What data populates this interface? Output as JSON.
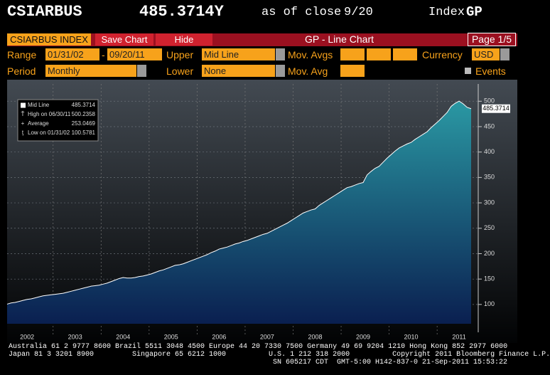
{
  "header": {
    "ticker": "CSIARBUS",
    "price": "485.3714Y",
    "as_of": "as of close",
    "date": "9/20",
    "index": "Index",
    "function": "GP"
  },
  "toolbar": {
    "security": "CSIARBUS INDEX",
    "save": "Save Chart",
    "hide": "Hide",
    "title": "GP - Line Chart",
    "page": "Page 1/5"
  },
  "controls": {
    "range_label": "Range",
    "start": "01/31/02",
    "dash": "-",
    "end": "09/20/11",
    "upper_label": "Upper",
    "upper": "Mid Line",
    "mov_avgs_label": "Mov. Avgs",
    "currency_label": "Currency",
    "currency": "USD",
    "period_label": "Period",
    "period": "Monthly",
    "lower_label": "Lower",
    "lower": "None",
    "mov_avg_label": "Mov. Avg",
    "events": "Events"
  },
  "footer": [
    "Australia 61 2 9777 8600 Brazil 5511 3048 4500 Europe 44 20 7330 7500 Germany 49 69 9204 1210 Hong Kong 852 2977 6000",
    "Japan 81 3 3201 8900         Singapore 65 6212 1000          U.S. 1 212 318 2000          Copyright 2011 Bloomberg Finance L.P.",
    "SN 605217 CDT  GMT-5:00 H142-837-0 21-Sep-2011 15:53:22"
  ],
  "chart_data": {
    "type": "area",
    "categories": [
      null,
      null,
      null,
      null,
      null,
      "2002",
      null,
      null,
      null,
      null,
      null,
      null,
      null,
      null,
      null,
      null,
      null,
      "2003",
      null,
      null,
      null,
      null,
      null,
      null,
      null,
      null,
      null,
      null,
      null,
      "2004",
      null,
      null,
      null,
      null,
      null,
      null,
      null,
      null,
      null,
      null,
      null,
      "2005",
      null,
      null,
      null,
      null,
      null,
      null,
      null,
      null,
      null,
      null,
      null,
      "2006",
      null,
      null,
      null,
      null,
      null,
      null,
      null,
      null,
      null,
      null,
      null,
      "2007",
      null,
      null,
      null,
      null,
      null,
      null,
      null,
      null,
      null,
      null,
      null,
      "2008",
      null,
      null,
      null,
      null,
      null,
      null,
      null,
      null,
      null,
      null,
      null,
      "2009",
      null,
      null,
      null,
      null,
      null,
      null,
      null,
      null,
      null,
      null,
      null,
      "2010",
      null,
      null,
      null,
      null,
      null,
      null,
      null,
      null,
      null,
      null,
      null,
      "2011",
      null,
      null,
      null
    ],
    "series": [
      {
        "name": "Mid Line",
        "color": "#1f8596",
        "values": [
          100.5781,
          103,
          104,
          106,
          108,
          110,
          111,
          113,
          115,
          117,
          118,
          119,
          120,
          121,
          122,
          124,
          126,
          128,
          130,
          132,
          134,
          136,
          137,
          138,
          140,
          142,
          145,
          148,
          151,
          153,
          152,
          152,
          153,
          155,
          156,
          158,
          160,
          163,
          166,
          168,
          171,
          174,
          177,
          178,
          180,
          183,
          186,
          189,
          192,
          195,
          198,
          202,
          205,
          209,
          211,
          213,
          216,
          219,
          221,
          224,
          226,
          229,
          232,
          235,
          238,
          240,
          244,
          248,
          252,
          256,
          260,
          265,
          270,
          275,
          280,
          283,
          286,
          288,
          295,
          300,
          305,
          310,
          315,
          320,
          325,
          330,
          332,
          335,
          338,
          340,
          355,
          362,
          368,
          372,
          380,
          388,
          395,
          402,
          408,
          412,
          416,
          419,
          425,
          430,
          435,
          440,
          448,
          455,
          462,
          470,
          478,
          490,
          496,
          500.2358,
          495,
          488,
          485.3714
        ]
      }
    ],
    "ylim": [
      62,
      534
    ],
    "yticks": [
      100,
      150,
      200,
      250,
      300,
      350,
      400,
      450,
      500
    ],
    "grid": true,
    "info_box": [
      {
        "label": "Mid Line",
        "value": "485.3714"
      },
      {
        "label": "High on 06/30/11",
        "value": "500.2358"
      },
      {
        "label": "Average",
        "value": "253.0469"
      },
      {
        "label": "Low on 01/31/02",
        "value": "100.5781"
      }
    ]
  }
}
